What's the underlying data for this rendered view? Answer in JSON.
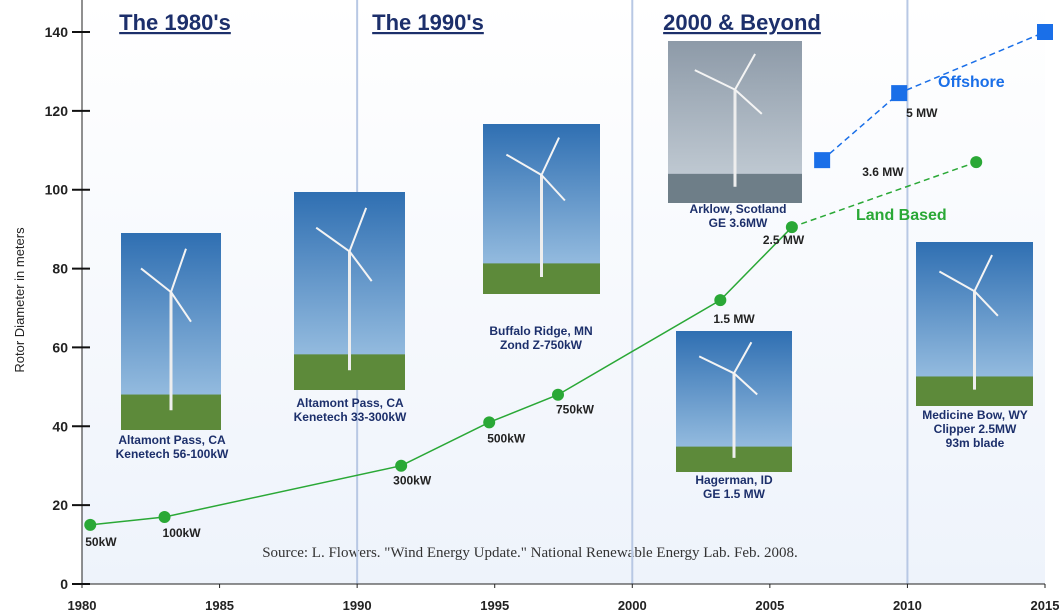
{
  "chart_data": {
    "type": "line",
    "y_label": "Rotor Diameter in meters",
    "xlim": [
      1980,
      2015
    ],
    "xticks": [
      1980,
      1985,
      1990,
      1995,
      2000,
      2005,
      2010,
      2015
    ],
    "ylim": [
      0,
      140
    ],
    "yticks": [
      0,
      20,
      40,
      60,
      80,
      100,
      120,
      140
    ],
    "era_dividers": [
      1990,
      2000,
      2010
    ],
    "eras": [
      "The 1980's",
      "The 1990's",
      "2000 & Beyond"
    ],
    "series": [
      {
        "name": "Land Based",
        "color": "#2aa836",
        "marker": "circle",
        "dashed_from": 6,
        "x": [
          1980.3,
          1983,
          1991.6,
          1994.8,
          1997.3,
          2003.2,
          2005.8,
          2012.5
        ],
        "values": [
          15,
          17,
          30,
          41,
          48,
          72,
          90.5,
          107
        ],
        "point_labels": [
          "50kW",
          "100kW",
          "300kW",
          "500kW",
          "750kW",
          "1.5 MW",
          "2.5 MW",
          "3.6 MW"
        ]
      },
      {
        "name": "Offshore",
        "color": "#1a6fe8",
        "marker": "square",
        "dashed_from": 0,
        "x": [
          2006.9,
          2009.7,
          2015
        ],
        "values": [
          107.5,
          124.5,
          140
        ],
        "point_labels": [
          null,
          "5 MW",
          null
        ]
      }
    ],
    "photos": [
      {
        "caption": [
          "Altamont Pass, CA",
          "Kenetech 56-100kW"
        ]
      },
      {
        "caption": [
          "Altamont Pass, CA",
          "Kenetech 33-300kW"
        ]
      },
      {
        "caption": [
          "Buffalo Ridge, MN",
          "Zond Z-750kW"
        ]
      },
      {
        "caption": [
          "Arklow, Scotland",
          "GE 3.6MW"
        ]
      },
      {
        "caption": [
          "Hagerman, ID",
          "GE 1.5 MW"
        ]
      },
      {
        "caption": [
          "Medicine Bow, WY",
          "Clipper 2.5MW",
          "93m blade"
        ]
      }
    ],
    "source": "Source: L. Flowers. \"Wind Energy Update.\" National Renewable Energy Lab. Feb. 2008."
  }
}
